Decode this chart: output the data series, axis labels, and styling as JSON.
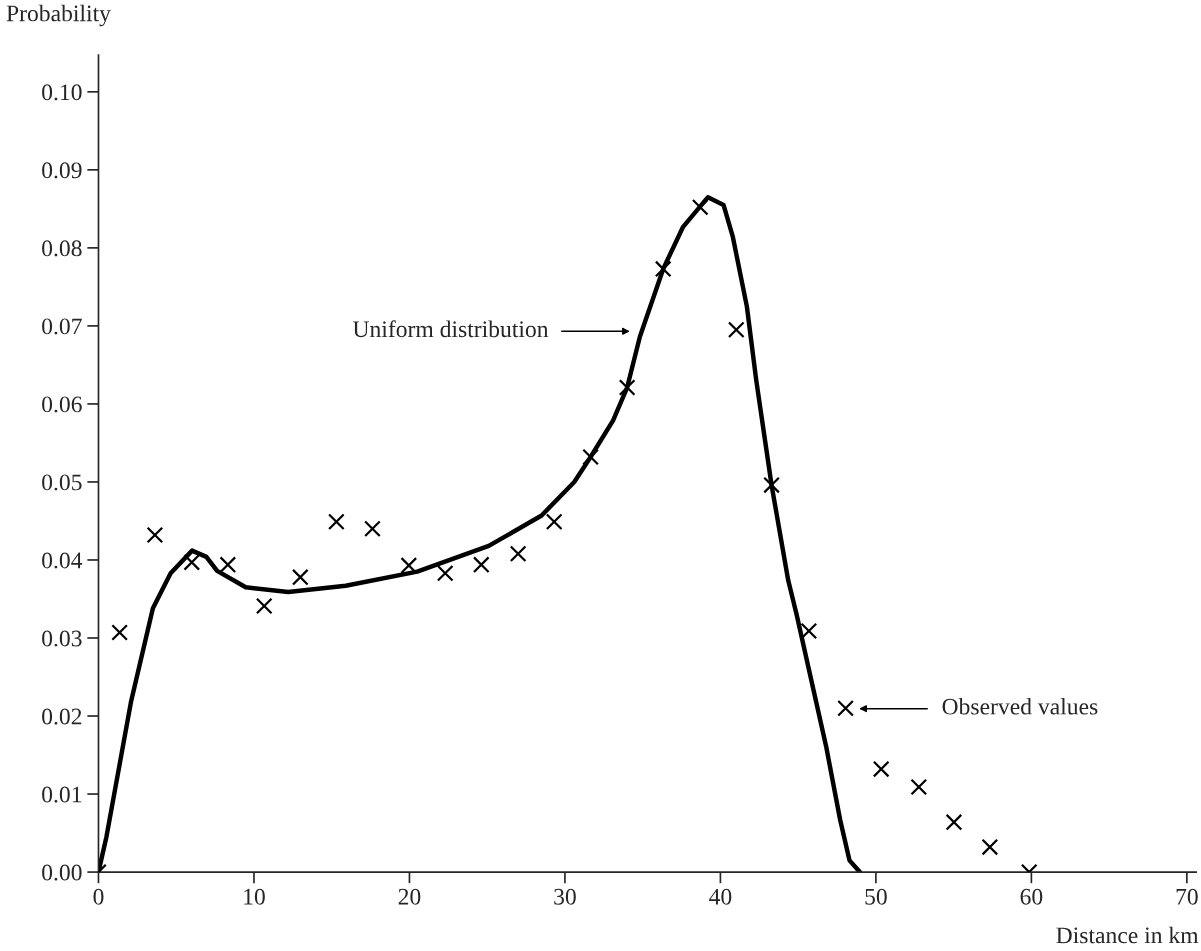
{
  "chart_data": {
    "type": "scatter",
    "xlabel": "Distance in km",
    "ylabel": "Probability",
    "xlim": [
      0,
      70.6
    ],
    "ylim": [
      0,
      0.1047
    ],
    "xticks": [
      0,
      10,
      20,
      30,
      40,
      50,
      60,
      70
    ],
    "yticks": [
      {
        "value": 0,
        "label": "0.00"
      },
      {
        "value": 0.01,
        "label": "0.01"
      },
      {
        "value": 0.02,
        "label": "0.02"
      },
      {
        "value": 0.03,
        "label": "0.03"
      },
      {
        "value": 0.04,
        "label": "0.04"
      },
      {
        "value": 0.05,
        "label": "0.05"
      },
      {
        "value": 0.06,
        "label": "0.06"
      },
      {
        "value": 0.07,
        "label": "0.07"
      },
      {
        "value": 0.08,
        "label": "0.08"
      },
      {
        "value": 0.09,
        "label": "0.09"
      },
      {
        "value": 0.1,
        "label": "0.10"
      }
    ],
    "grid": false,
    "legend": false,
    "series": [
      {
        "type": "line",
        "color": "#000000",
        "marker": "none",
        "line_style": "solid",
        "x": [
          0,
          0.51,
          2.1,
          3.5,
          4.64,
          6.02,
          6.94,
          7.63,
          9.47,
          12.2,
          15.9,
          20.5,
          25.1,
          28.5,
          30.6,
          31.65,
          33.1,
          34.0,
          34.82,
          36.32,
          37.6,
          39.2,
          40.2,
          40.8,
          41.7,
          42.3,
          43.29,
          44.36,
          44.9,
          46.8,
          47.7,
          48.3,
          48.97
        ],
        "values": [
          0,
          0.0045,
          0.0219,
          0.0338,
          0.0383,
          0.0412,
          0.0404,
          0.0386,
          0.0365,
          0.0359,
          0.0367,
          0.0385,
          0.0418,
          0.0457,
          0.05,
          0.0532,
          0.0579,
          0.0621,
          0.0686,
          0.0773,
          0.0827,
          0.0865,
          0.0855,
          0.0814,
          0.0725,
          0.0631,
          0.0496,
          0.0374,
          0.033,
          0.0161,
          0.0067,
          0.0015,
          0
        ]
      },
      {
        "color": "#000000",
        "marker": "cross",
        "x": [
          0,
          1.36,
          3.63,
          6.0,
          8.32,
          10.66,
          12.98,
          15.3,
          17.62,
          19.96,
          22.3,
          24.62,
          26.99,
          29.31,
          31.65,
          34.0,
          36.32,
          38.7,
          41.02,
          43.29,
          45.69,
          48.05,
          50.34,
          52.76,
          55.02,
          57.33,
          59.86
        ],
        "values": [
          0,
          0.0307,
          0.0432,
          0.0397,
          0.0394,
          0.0341,
          0.0378,
          0.0449,
          0.044,
          0.0393,
          0.0383,
          0.0394,
          0.0408,
          0.0449,
          0.0532,
          0.0621,
          0.0773,
          0.0852,
          0.0695,
          0.0496,
          0.0309,
          0.021,
          0.0132,
          0.0109,
          0.0064,
          0.0032,
          0
        ]
      }
    ],
    "annotations": [
      "Uniform distribution",
      "Observed values"
    ]
  }
}
